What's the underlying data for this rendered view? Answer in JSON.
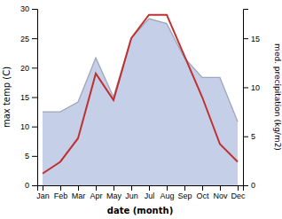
{
  "chart_data": {
    "type": "line",
    "categories": [
      "Jan",
      "Feb",
      "Mar",
      "Apr",
      "May",
      "Jun",
      "Jul",
      "Aug",
      "Sep",
      "Oct",
      "Nov",
      "Dec"
    ],
    "xlabel": "date (month)",
    "ylabel": "max temp (C)",
    "y2label": "med. precipitation (kg/m2)",
    "ylim": [
      0,
      30
    ],
    "yticks": [
      0,
      5,
      10,
      15,
      20,
      25,
      30
    ],
    "y2lim": [
      0,
      18
    ],
    "y2ticks": [
      0,
      5,
      10,
      15
    ],
    "grid": false,
    "series": [
      {
        "type": "area",
        "axis": "y2",
        "color": "#c5cfe8",
        "values": [
          7.5,
          7.5,
          8.5,
          13,
          9,
          15,
          17,
          16.5,
          13,
          11,
          11,
          6.5
        ]
      },
      {
        "type": "line",
        "color": "#c03030",
        "values": [
          2,
          4,
          8,
          19,
          14.5,
          25,
          29,
          29,
          22,
          15,
          7,
          4
        ]
      }
    ]
  }
}
